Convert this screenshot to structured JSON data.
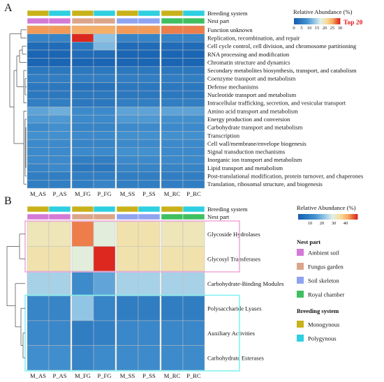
{
  "colors": {
    "monogynous": "#c9b11a",
    "polygynous": "#2ecfe0",
    "ambient_soil": "#d47ad6",
    "fungus_garden": "#dca58a",
    "soil_skeleton": "#8fa4f0",
    "royal_chamber": "#3fbf5f",
    "top20_text": "#e31a1c",
    "panel_b_box_pink": "#f2a7d8",
    "panel_b_box_cyan": "#7ef0f0"
  },
  "chart_data": [
    {
      "type": "heatmap",
      "panel": "A",
      "columns": [
        "M_AS",
        "P_AS",
        "M_FG",
        "P_FG",
        "M_SS",
        "P_SS",
        "M_RC",
        "P_RC"
      ],
      "annotation_tracks": [
        "Breeding system",
        "Nest part"
      ],
      "breeding_system": [
        "Monogynous",
        "Polygynous",
        "Monogynous",
        "Polygynous",
        "Monogynous",
        "Polygynous",
        "Monogynous",
        "Polygynous"
      ],
      "nest_part": [
        "Ambient soil",
        "Ambient soil",
        "Fungus garden",
        "Fungus garden",
        "Soil skeleton",
        "Soil skeleton",
        "Royal chamber",
        "Royal chamber"
      ],
      "legend_title": "Relative Abundance (%)",
      "legend_ticks": [
        "0",
        "5",
        "10",
        "15",
        "20",
        "25",
        "30"
      ],
      "color_range": [
        0,
        30
      ],
      "annotation": "Top 20",
      "rows": [
        "Function unknown",
        "Replication, recombination, and repair",
        "Cell cycle control, cell division, and chromosome partitioning",
        "RNA processing and modification",
        "Chromatin structure and dynamics",
        "Secondary metabolites biosynthesis, transport, and catabolism",
        "Coenzyme transport and metabolism",
        "Defense mechanisms",
        "Nucleotide transport and metabolism",
        "Intracellular trafficking, secretion, and vesicular transport",
        "Amino acid transport and metabolism",
        "Energy production and conversion",
        "Carbohydrate transport and metabolism",
        "Transcription",
        "Cell wall/membrane/envelope biogenesis",
        "Signal transduction mechanisms",
        "Inorganic ion transport and metabolism",
        "Lipid transport and metabolism",
        "Post-translational modification, protein turnover, and chaperones",
        "Translation, ribosomal structure, and biogenesis"
      ],
      "values": [
        [
          26,
          26,
          25,
          25,
          26,
          26,
          27,
          27
        ],
        [
          6,
          6,
          30,
          13,
          6,
          6,
          6,
          6
        ],
        [
          2,
          2,
          4,
          12,
          2,
          2,
          2,
          2
        ],
        [
          1,
          1,
          2,
          2,
          1,
          1,
          1,
          1
        ],
        [
          1,
          1,
          1,
          1,
          1,
          1,
          1,
          1
        ],
        [
          4,
          4,
          4,
          4,
          4,
          4,
          4,
          4
        ],
        [
          5,
          5,
          5,
          5,
          5,
          5,
          5,
          5
        ],
        [
          4,
          4,
          3,
          3,
          4,
          4,
          4,
          4
        ],
        [
          4,
          4,
          4,
          4,
          4,
          4,
          4,
          4
        ],
        [
          5,
          5,
          4,
          4,
          5,
          5,
          5,
          5
        ],
        [
          10,
          11,
          7,
          7,
          10,
          10,
          10,
          10
        ],
        [
          9,
          9,
          7,
          7,
          9,
          9,
          8,
          8
        ],
        [
          7,
          8,
          6,
          6,
          7,
          7,
          7,
          7
        ],
        [
          8,
          8,
          7,
          7,
          8,
          8,
          8,
          8
        ],
        [
          7,
          7,
          6,
          6,
          7,
          7,
          7,
          7
        ],
        [
          7,
          7,
          7,
          7,
          8,
          8,
          7,
          7
        ],
        [
          7,
          7,
          5,
          5,
          7,
          7,
          7,
          7
        ],
        [
          6,
          7,
          4,
          4,
          6,
          6,
          6,
          6
        ],
        [
          5,
          5,
          5,
          5,
          5,
          5,
          5,
          5
        ],
        [
          5,
          5,
          5,
          6,
          5,
          5,
          5,
          5
        ]
      ]
    },
    {
      "type": "heatmap",
      "panel": "B",
      "columns": [
        "M_AS",
        "P_AS",
        "M_FG",
        "P_FG",
        "M_SS",
        "P_SS",
        "M_RC",
        "P_RC"
      ],
      "annotation_tracks": [
        "Breeding system",
        "Nest part"
      ],
      "breeding_system": [
        "Monogynous",
        "Polygynous",
        "Monogynous",
        "Polygynous",
        "Monogynous",
        "Polygynous",
        "Monogynous",
        "Polygynous"
      ],
      "nest_part": [
        "Ambient soil",
        "Ambient soil",
        "Fungus garden",
        "Fungus garden",
        "Soil skeleton",
        "Soil skeleton",
        "Royal chamber",
        "Royal chamber"
      ],
      "legend_title": "Relative Abundance (%)",
      "legend_ticks": [
        "10",
        "20",
        "30",
        "40"
      ],
      "color_range": [
        0,
        50
      ],
      "rows": [
        "Glycoside Hydrolases",
        "Glycosyl Transferases",
        "Carbohydrate-Binding Modules",
        "Polysaccharide Lyases",
        "Auxiliary Activities",
        "Carbohydrate Esterases"
      ],
      "values": [
        [
          33,
          33,
          45,
          30,
          34,
          34,
          33,
          33
        ],
        [
          34,
          34,
          30,
          50,
          34,
          34,
          34,
          34
        ],
        [
          24,
          24,
          12,
          17,
          24,
          24,
          24,
          24
        ],
        [
          10,
          10,
          22,
          10,
          8,
          8,
          8,
          8
        ],
        [
          11,
          11,
          8,
          9,
          11,
          11,
          11,
          11
        ],
        [
          13,
          13,
          10,
          12,
          12,
          12,
          12,
          12
        ]
      ],
      "nest_part_legend": {
        "title": "Nest part",
        "items": [
          "Ambient soil",
          "Fungus garden",
          "Soil skeleton",
          "Royal chamber"
        ]
      },
      "breeding_system_legend": {
        "title": "Breeding system",
        "items": [
          "Monogynous",
          "Polygynous"
        ]
      }
    }
  ]
}
